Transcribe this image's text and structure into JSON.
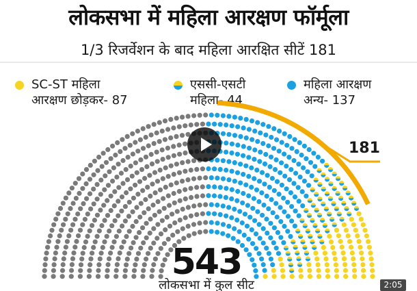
{
  "title": "लोकसभा में महिला आरक्षण फॉर्मूला",
  "subtitle": "1/3 रिजर्वेशन के बाद महिला आरक्षित सीटें 181",
  "legend": [
    {
      "line1": "SC-ST महिला",
      "line2": "आरक्षण छोड़कर- 87",
      "icon": "yellow-dot-icon"
    },
    {
      "line1": "एससी-एसटी",
      "line2": "महिला- 44",
      "icon": "half-yellow-half-blue-dot-icon"
    },
    {
      "line1": "महिला आरक्षण",
      "line2": "अन्य- 137",
      "icon": "blue-dot-icon"
    }
  ],
  "colors": {
    "grey": "#7a7a7a",
    "blue": "#1ba1e2",
    "yellow": "#f5d423",
    "orange": "#f2a900"
  },
  "chart_data": {
    "type": "parliament-seats",
    "total": 543,
    "total_label": "543",
    "total_caption": "लोकसभा में कुल सीट",
    "reserved_callout": "181",
    "series": [
      {
        "name": "SC-ST महिला आरक्षण छोड़कर",
        "value": 87
      },
      {
        "name": "एससी-एसटी महिला",
        "value": 44
      },
      {
        "name": "महिला आरक्षण अन्य",
        "value": 137
      }
    ]
  },
  "player": {
    "timestamp": "2:05",
    "play_icon": "play-icon"
  }
}
